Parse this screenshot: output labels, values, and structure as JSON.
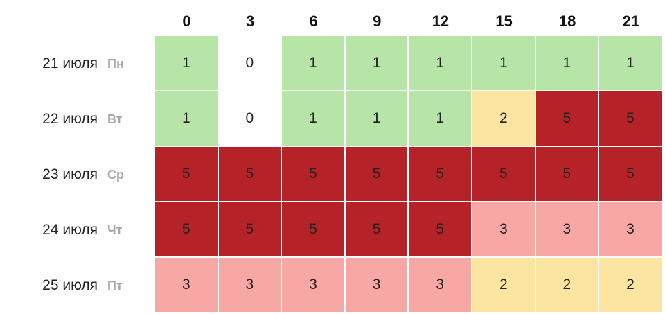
{
  "chart_data": {
    "type": "heatmap",
    "x": [
      "0",
      "3",
      "6",
      "9",
      "12",
      "15",
      "18",
      "21"
    ],
    "rows": [
      {
        "date": "21 июля",
        "day": "Пн",
        "values": [
          1,
          0,
          1,
          1,
          1,
          1,
          1,
          1
        ]
      },
      {
        "date": "22 июля",
        "day": "Вт",
        "values": [
          1,
          0,
          1,
          1,
          1,
          2,
          5,
          5
        ]
      },
      {
        "date": "23 июля",
        "day": "Ср",
        "values": [
          5,
          5,
          5,
          5,
          5,
          5,
          5,
          5
        ]
      },
      {
        "date": "24 июля",
        "day": "Чт",
        "values": [
          5,
          5,
          5,
          5,
          5,
          3,
          3,
          3
        ]
      },
      {
        "date": "25 июля",
        "day": "Пт",
        "values": [
          3,
          3,
          3,
          3,
          3,
          2,
          2,
          2
        ]
      }
    ],
    "colors": {
      "0": "#ffffff",
      "1": "#b7e5a8",
      "2": "#fbe5a0",
      "3": "#f7a7a4",
      "5": "#b52227"
    }
  }
}
